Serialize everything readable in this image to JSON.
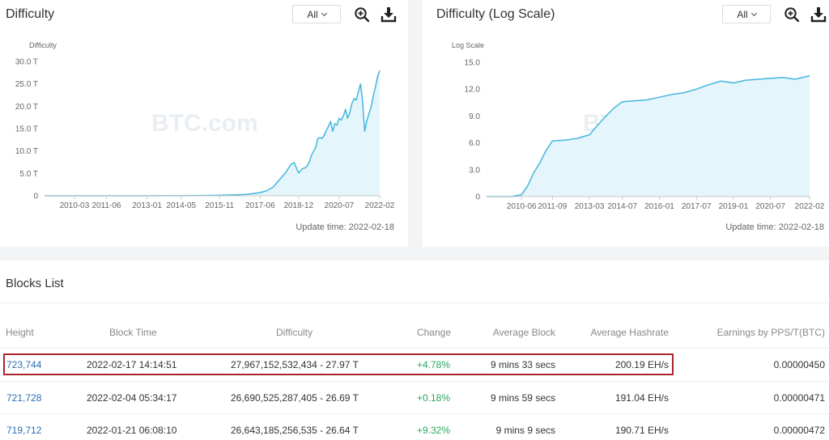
{
  "left_chart": {
    "title": "Difficulty",
    "range": "All",
    "update_time": "Update time: 2022-02-18",
    "watermark": "BTC.com",
    "icons": [
      "zoom-in-icon",
      "download-icon"
    ],
    "chart_data": {
      "type": "area",
      "title": "",
      "ylabel": "Difficulty",
      "xlabel": "",
      "ylim": [
        0,
        30
      ],
      "y_ticks": [
        "0",
        "5.0 T",
        "10.0 T",
        "15.0 T",
        "20.0 T",
        "25.0 T",
        "30.0 T"
      ],
      "y_tick_values": [
        0,
        5,
        10,
        15,
        20,
        25,
        30
      ],
      "x_ticks": [
        "2010-03",
        "2011-06",
        "2013-01",
        "2014-05",
        "2015-11",
        "2017-06",
        "2018-12",
        "2020-07",
        "2022-02"
      ],
      "grid": false,
      "series": [
        {
          "unit": "T",
          "points": [
            [
              "2009-01",
              0
            ],
            [
              "2013-01",
              0
            ],
            [
              "2014-05",
              0.01
            ],
            [
              "2015-11",
              0.1
            ],
            [
              "2016-06",
              0.2
            ],
            [
              "2016-12",
              0.3
            ],
            [
              "2017-06",
              0.7
            ],
            [
              "2017-09",
              1.1
            ],
            [
              "2017-12",
              1.9
            ],
            [
              "2018-02",
              3.0
            ],
            [
              "2018-04",
              4.1
            ],
            [
              "2018-06",
              5.2
            ],
            [
              "2018-08",
              6.7
            ],
            [
              "2018-09",
              7.2
            ],
            [
              "2018-10",
              7.4
            ],
            [
              "2018-11",
              6.2
            ],
            [
              "2018-12",
              5.1
            ],
            [
              "2019-01",
              5.6
            ],
            [
              "2019-02",
              6.1
            ],
            [
              "2019-03",
              6.2
            ],
            [
              "2019-04",
              6.6
            ],
            [
              "2019-05",
              7.5
            ],
            [
              "2019-06",
              9.0
            ],
            [
              "2019-07",
              9.9
            ],
            [
              "2019-08",
              10.8
            ],
            [
              "2019-09",
              12.8
            ],
            [
              "2019-10",
              13.0
            ],
            [
              "2019-11",
              12.8
            ],
            [
              "2019-12",
              13.5
            ],
            [
              "2020-01",
              14.6
            ],
            [
              "2020-02",
              15.5
            ],
            [
              "2020-03",
              16.6
            ],
            [
              "2020-04",
              14.4
            ],
            [
              "2020-05",
              16.1
            ],
            [
              "2020-06",
              15.8
            ],
            [
              "2020-07",
              17.3
            ],
            [
              "2020-08",
              16.9
            ],
            [
              "2020-09",
              17.9
            ],
            [
              "2020-10",
              19.3
            ],
            [
              "2020-11",
              17.3
            ],
            [
              "2020-12",
              18.6
            ],
            [
              "2021-01",
              20.6
            ],
            [
              "2021-02",
              21.7
            ],
            [
              "2021-03",
              21.4
            ],
            [
              "2021-04",
              23.1
            ],
            [
              "2021-05",
              25.0
            ],
            [
              "2021-06",
              21.1
            ],
            [
              "2021-07",
              14.4
            ],
            [
              "2021-08",
              16.8
            ],
            [
              "2021-09",
              18.4
            ],
            [
              "2021-10",
              19.9
            ],
            [
              "2021-11",
              22.3
            ],
            [
              "2021-12",
              24.3
            ],
            [
              "2022-01",
              26.6
            ],
            [
              "2022-02",
              28.0
            ]
          ]
        }
      ]
    }
  },
  "right_chart": {
    "title": "Difficulty (Log Scale)",
    "range": "All",
    "update_time": "Update time: 2022-02-18",
    "watermark": "BTC.com",
    "icons": [
      "zoom-in-icon",
      "download-icon"
    ],
    "chart_data": {
      "type": "area",
      "title": "",
      "ylabel": "Log Scale",
      "xlabel": "",
      "ylim": [
        0,
        15
      ],
      "y_ticks": [
        "0",
        "3.0",
        "6.0",
        "9.0",
        "12.0",
        "15.0"
      ],
      "y_tick_values": [
        0,
        3,
        6,
        9,
        12,
        15
      ],
      "x_ticks": [
        "2010-06",
        "2011-09",
        "2013-03",
        "2014-07",
        "2016-01",
        "2017-07",
        "2019-01",
        "2020-07",
        "2022-02"
      ],
      "grid": false,
      "series": [
        {
          "points": [
            [
              "2009-01",
              0
            ],
            [
              "2010-01",
              0
            ],
            [
              "2010-06",
              0.2
            ],
            [
              "2010-09",
              1.2
            ],
            [
              "2010-12",
              2.7
            ],
            [
              "2011-03",
              3.8
            ],
            [
              "2011-06",
              5.2
            ],
            [
              "2011-09",
              6.2
            ],
            [
              "2012-03",
              6.3
            ],
            [
              "2012-09",
              6.5
            ],
            [
              "2013-03",
              6.9
            ],
            [
              "2013-09",
              8.5
            ],
            [
              "2014-03",
              9.9
            ],
            [
              "2014-07",
              10.6
            ],
            [
              "2015-01",
              10.7
            ],
            [
              "2015-07",
              10.8
            ],
            [
              "2016-01",
              11.1
            ],
            [
              "2016-07",
              11.4
            ],
            [
              "2017-01",
              11.6
            ],
            [
              "2017-07",
              12.0
            ],
            [
              "2018-01",
              12.5
            ],
            [
              "2018-07",
              12.9
            ],
            [
              "2019-01",
              12.7
            ],
            [
              "2019-07",
              13.0
            ],
            [
              "2020-01",
              13.1
            ],
            [
              "2020-07",
              13.2
            ],
            [
              "2021-01",
              13.3
            ],
            [
              "2021-07",
              13.1
            ],
            [
              "2022-02",
              13.5
            ]
          ]
        }
      ]
    }
  },
  "blocks": {
    "title": "Blocks List",
    "columns": {
      "height": "Height",
      "time": "Block Time",
      "difficulty": "Difficulty",
      "change": "Change",
      "avg_block": "Average Block",
      "avg_hashrate": "Average Hashrate",
      "earnings": "Earnings by PPS/T(BTC)"
    },
    "rows": [
      {
        "height": "723,744",
        "time": "2022-02-17 14:14:51",
        "difficulty": "27,967,152,532,434 - 27.97 T",
        "change": "+4.78%",
        "avg_block": "9 mins 33 secs",
        "avg_hashrate": "200.19 EH/s",
        "earnings": "0.00000450"
      },
      {
        "height": "721,728",
        "time": "2022-02-04 05:34:17",
        "difficulty": "26,690,525,287,405 - 26.69 T",
        "change": "+0.18%",
        "avg_block": "9 mins 59 secs",
        "avg_hashrate": "191.04 EH/s",
        "earnings": "0.00000471"
      },
      {
        "height": "719,712",
        "time": "2022-01-21 06:08:10",
        "difficulty": "26,643,185,256,535 - 26.64 T",
        "change": "+9.32%",
        "avg_block": "9 mins 9 secs",
        "avg_hashrate": "190.71 EH/s",
        "earnings": "0.00000472"
      }
    ]
  },
  "colors": {
    "line": "#44b6dc",
    "area": "#e4f5fb",
    "positive": "#27a760",
    "link": "#2d6db4",
    "highlight": "#a8262c"
  }
}
